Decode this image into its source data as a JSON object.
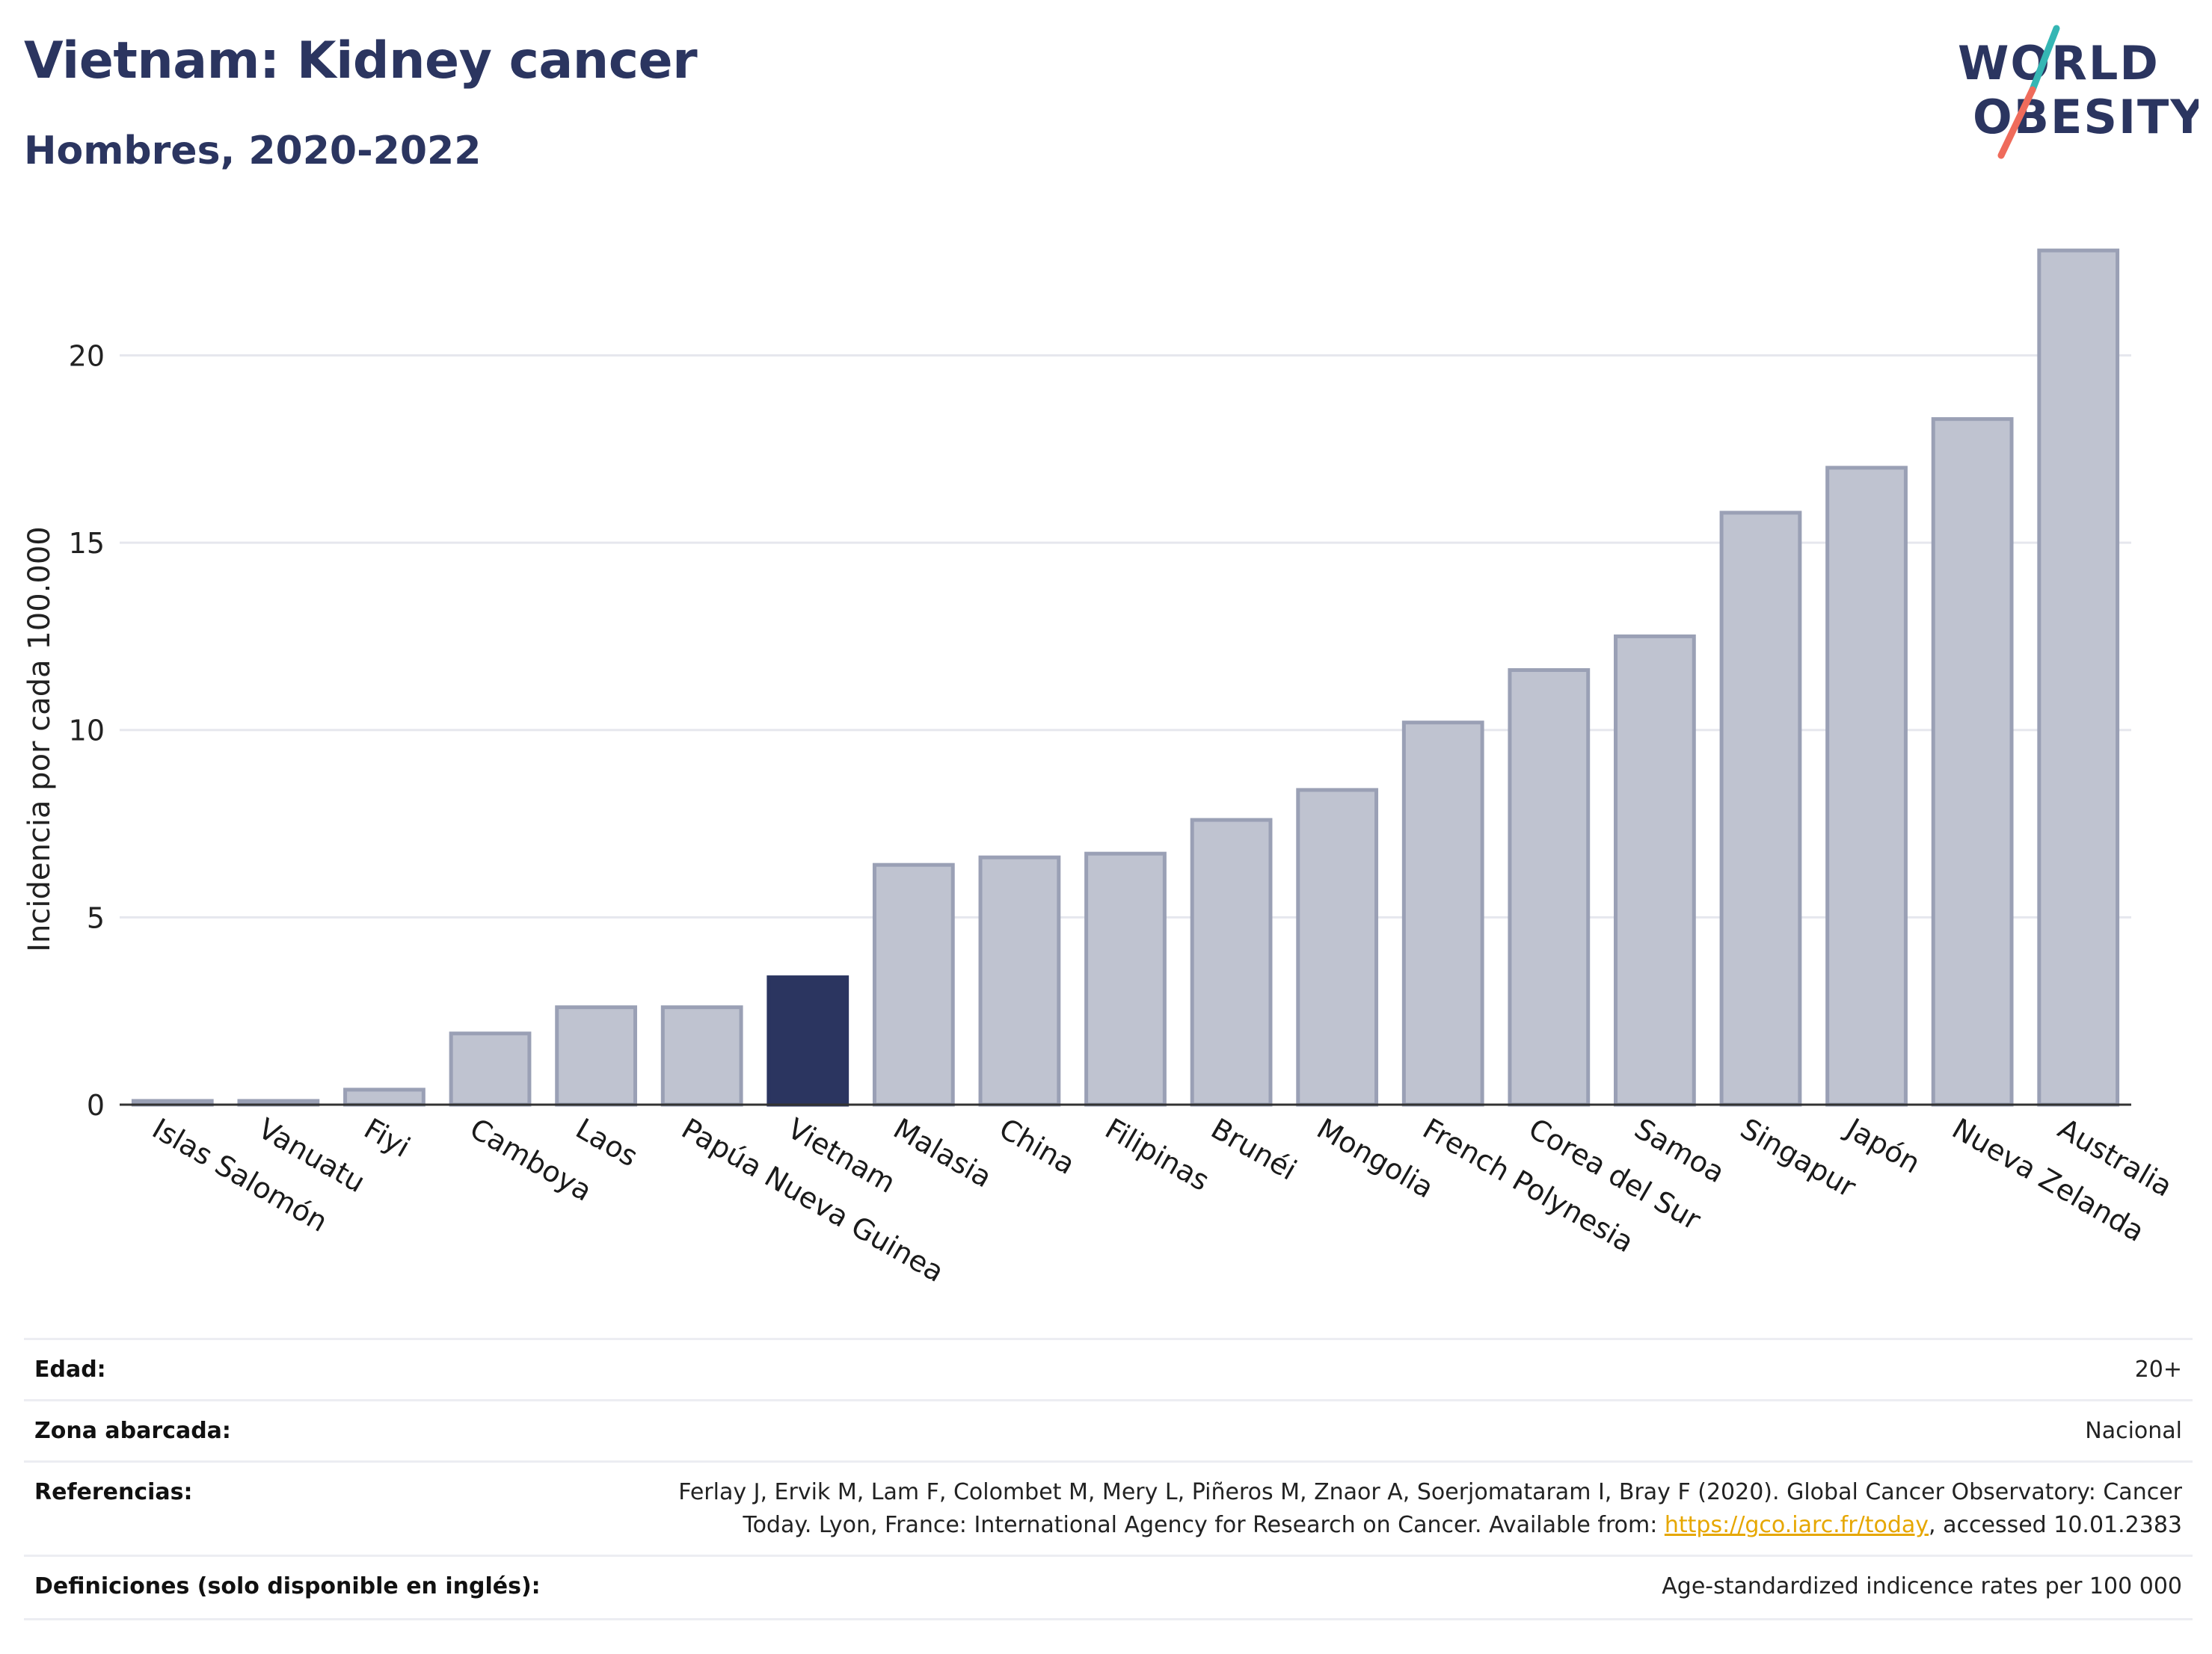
{
  "header": {
    "title": "Vietnam: Kidney cancer",
    "subtitle": "Hombres, 2020-2022",
    "logo_line1": "WORLD",
    "logo_line2": "OBESITY"
  },
  "colors": {
    "bar": "#bfc3d0",
    "bar_border": "#9aa0b5",
    "highlight": "#2b3560",
    "title": "#2b3560",
    "link": "#e6a700",
    "grid": "#e6e7ee"
  },
  "chart_data": {
    "type": "bar",
    "ylabel": "Incidencia por cada 100.000",
    "xlabel": "",
    "ylim": [
      0,
      23.5
    ],
    "yticks": [
      0,
      5,
      10,
      15,
      20
    ],
    "grid": true,
    "highlight": "Vietnam",
    "categories": [
      "Islas Salomón",
      "Vanuatu",
      "Fiyi",
      "Camboya",
      "Laos",
      "Papúa Nueva Guinea",
      "Vietnam",
      "Malasia",
      "China",
      "Filipinas",
      "Brunéi",
      "Mongolia",
      "French Polynesia",
      "Corea del Sur",
      "Samoa",
      "Singapur",
      "Japón",
      "Nueva Zelanda",
      "Australia"
    ],
    "values": [
      0.1,
      0.1,
      0.4,
      1.9,
      2.6,
      2.6,
      3.4,
      6.4,
      6.6,
      6.7,
      7.6,
      8.4,
      10.2,
      11.6,
      12.5,
      15.8,
      17.0,
      18.3,
      22.8
    ]
  },
  "meta": {
    "rows": [
      {
        "label": "Edad:",
        "value": "20+"
      },
      {
        "label": "Zona abarcada:",
        "value": "Nacional"
      },
      {
        "label": "Referencias:",
        "value_line1": "Ferlay J, Ervik M, Lam F, Colombet M, Mery L, Piñeros M, Znaor A, Soerjomataram I, Bray F (2020). Global Cancer Observatory: Cancer",
        "value_line2_pre": "Today. Lyon, France: International Agency for Research on Cancer. Available from: ",
        "link": "https://gco.iarc.fr/today",
        "value_line2_post": ", accessed 10.01.2383"
      },
      {
        "label": "Definiciones (solo disponible en inglés):",
        "value": "Age-standardized indicence rates per 100 000"
      }
    ]
  }
}
